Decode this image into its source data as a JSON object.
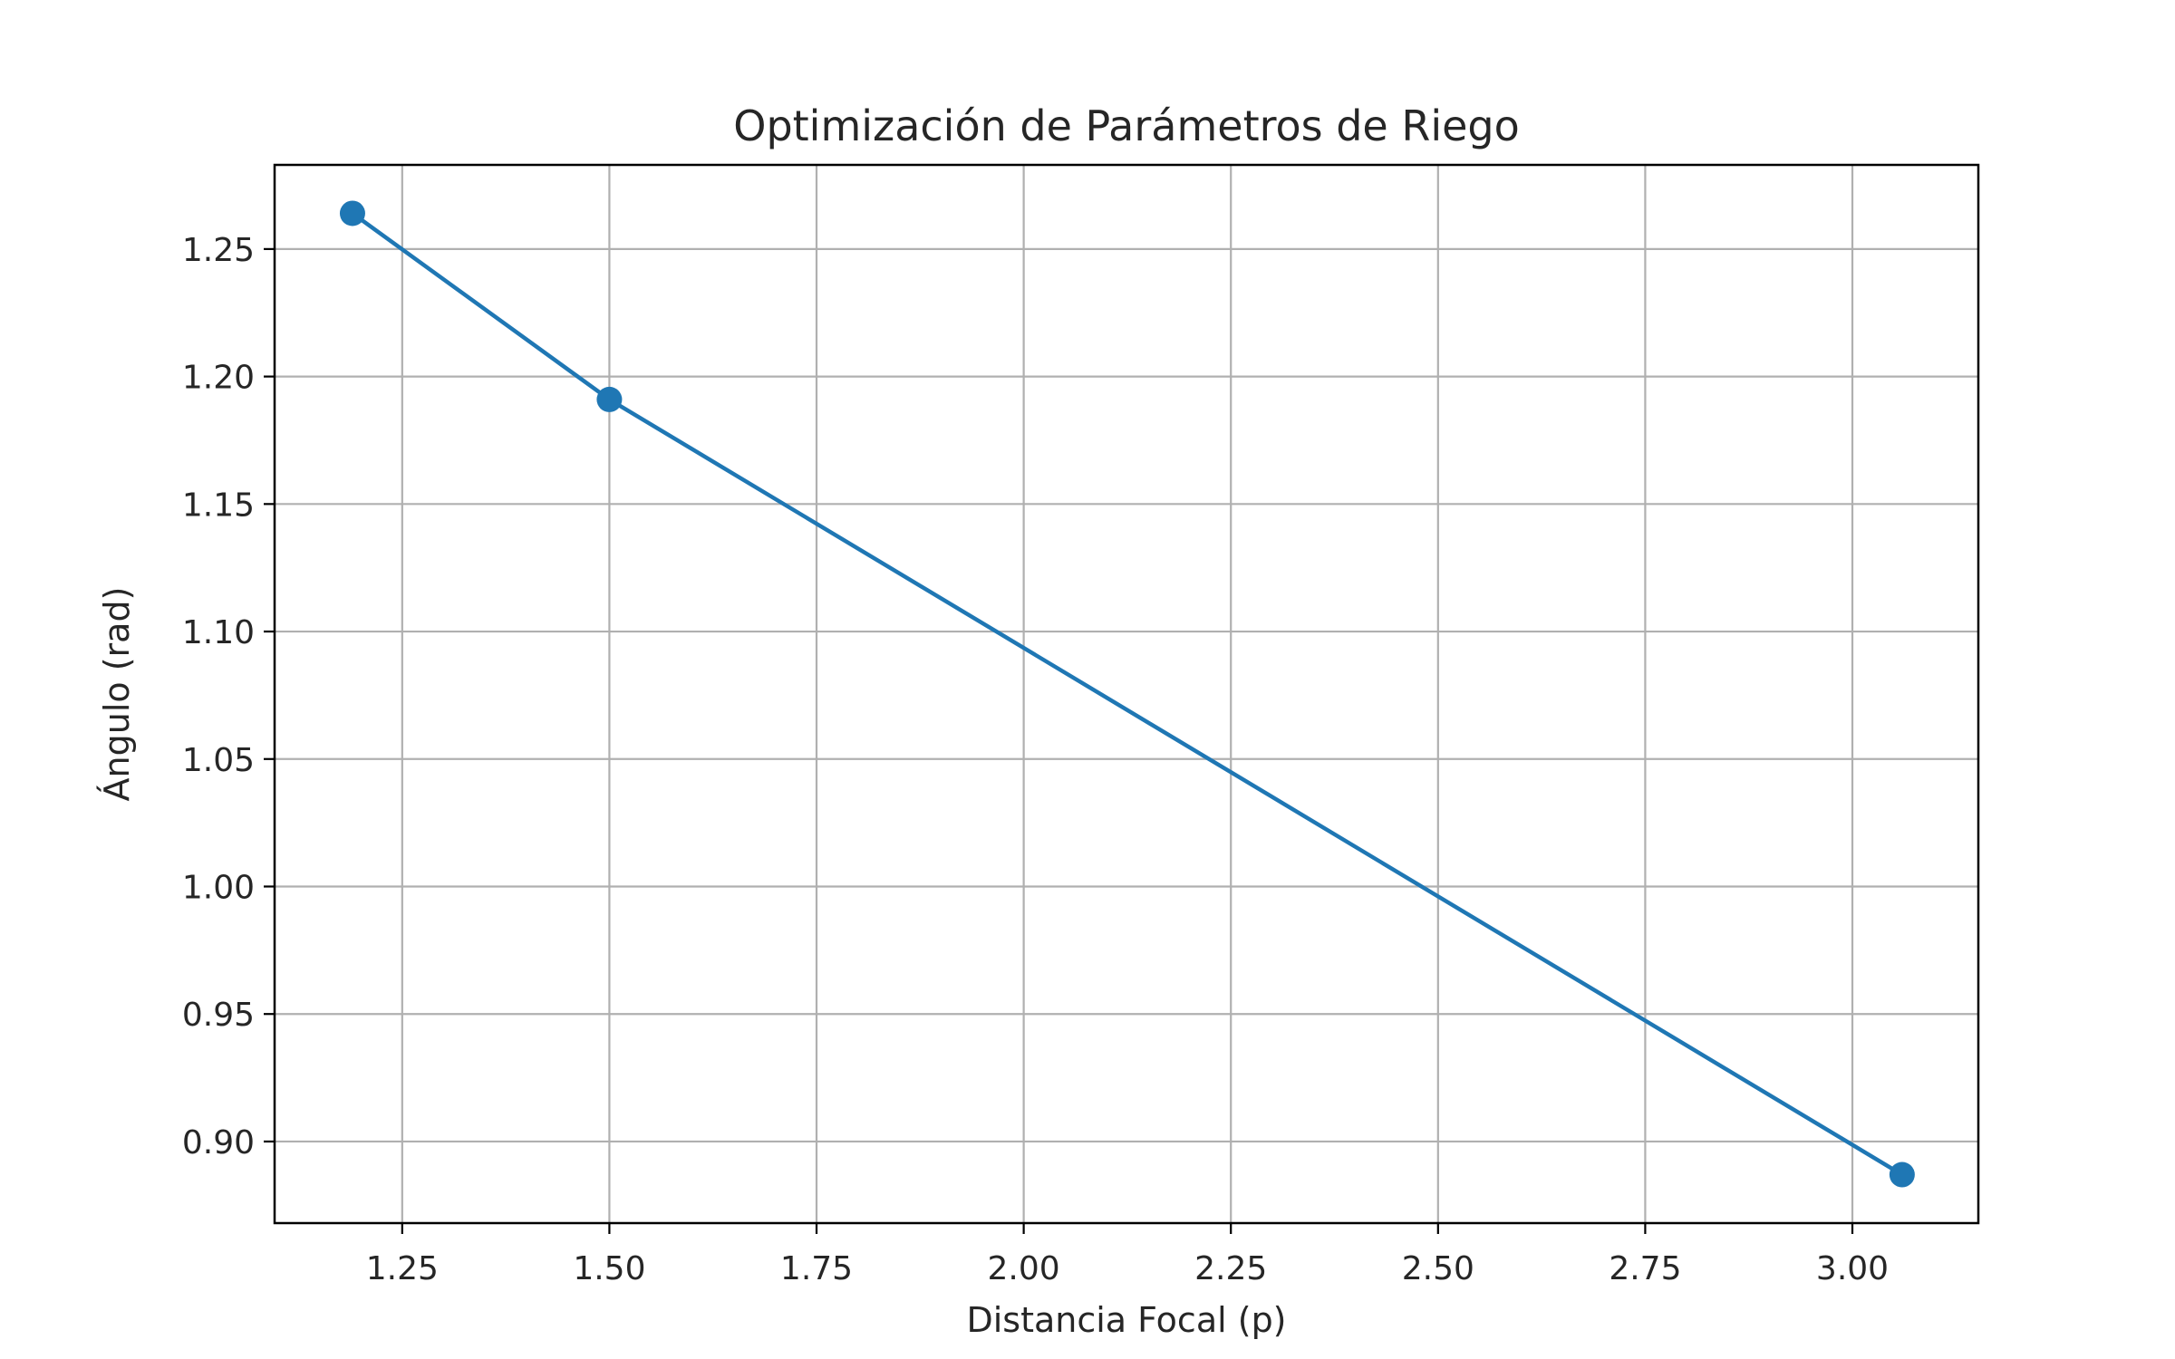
{
  "chart_data": {
    "type": "line",
    "title": "Optimización de Parámetros de Riego",
    "xlabel": "Distancia Focal (p)",
    "ylabel": "Ángulo (rad)",
    "xlim": [
      1.096,
      3.152
    ],
    "ylim": [
      0.868,
      1.283
    ],
    "grid": true,
    "xticks": [
      1.25,
      1.5,
      1.75,
      2.0,
      2.25,
      2.5,
      2.75,
      3.0
    ],
    "xtick_labels": [
      "1.25",
      "1.50",
      "1.75",
      "2.00",
      "2.25",
      "2.50",
      "2.75",
      "3.00"
    ],
    "yticks": [
      0.9,
      0.95,
      1.0,
      1.05,
      1.1,
      1.15,
      1.2,
      1.25
    ],
    "ytick_labels": [
      "0.90",
      "0.95",
      "1.00",
      "1.05",
      "1.10",
      "1.15",
      "1.20",
      "1.25"
    ],
    "series": [
      {
        "color": "#1f77b4",
        "marker": "circle",
        "x": [
          1.19,
          1.5,
          3.06
        ],
        "y": [
          1.264,
          1.191,
          0.887
        ]
      }
    ]
  }
}
